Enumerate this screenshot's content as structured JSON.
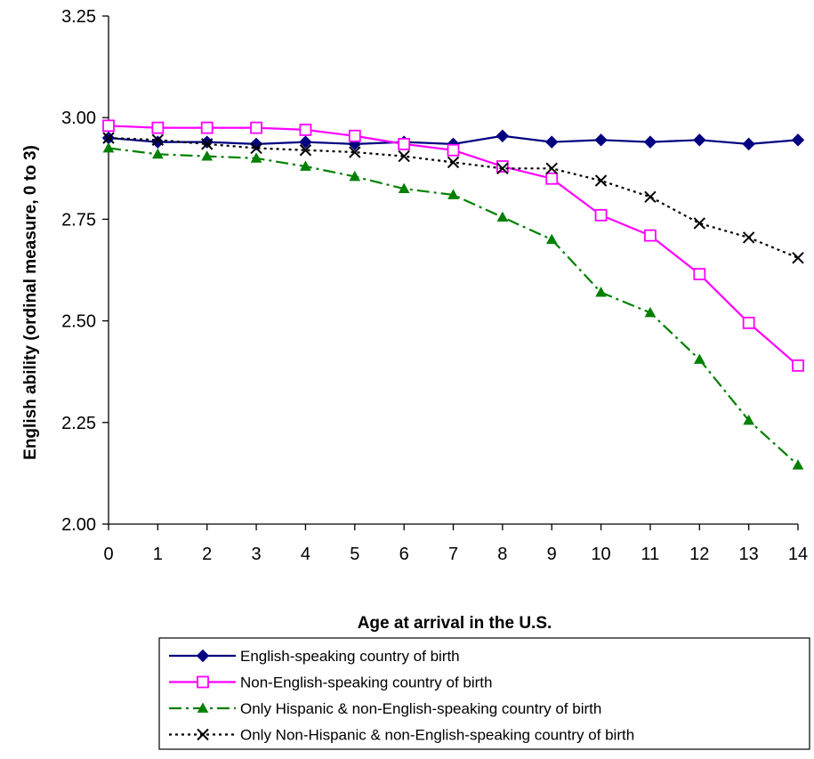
{
  "chart_data": {
    "type": "line",
    "title": "",
    "xlabel": "Age at arrival in the U.S.",
    "ylabel": "English ability (ordinal measure, 0 to 3)",
    "x": [
      0,
      1,
      2,
      3,
      4,
      5,
      6,
      7,
      8,
      9,
      10,
      11,
      12,
      13,
      14
    ],
    "xlim": [
      0,
      14
    ],
    "ylim": [
      2.0,
      3.25
    ],
    "yticks": [
      2.0,
      2.25,
      2.5,
      2.75,
      3.0,
      3.25
    ],
    "yticks_labels": [
      "2.00",
      "2.25",
      "2.50",
      "2.75",
      "3.00",
      "3.25"
    ],
    "xticks_labels": [
      "0",
      "1",
      "2",
      "3",
      "4",
      "5",
      "6",
      "7",
      "8",
      "9",
      "10",
      "11",
      "12",
      "13",
      "14"
    ],
    "grid": false,
    "legend_position": "bottom",
    "series": [
      {
        "name": "English-speaking country of birth",
        "color": "#000080",
        "line_style": "solid",
        "marker": "filled-diamond",
        "values": [
          2.95,
          2.94,
          2.94,
          2.935,
          2.94,
          2.935,
          2.94,
          2.935,
          2.955,
          2.94,
          2.945,
          2.94,
          2.945,
          2.935,
          2.945
        ]
      },
      {
        "name": "Non-English-speaking country of birth",
        "color": "#ff00ff",
        "line_style": "solid",
        "marker": "open-square",
        "values": [
          2.98,
          2.975,
          2.975,
          2.975,
          2.97,
          2.955,
          2.935,
          2.92,
          2.88,
          2.85,
          2.76,
          2.71,
          2.615,
          2.495,
          2.39
        ]
      },
      {
        "name": "Only Hispanic & non-English-speaking country of birth",
        "color": "#008000",
        "line_style": "dash-dot",
        "marker": "filled-triangle",
        "values": [
          2.925,
          2.91,
          2.905,
          2.9,
          2.88,
          2.855,
          2.825,
          2.81,
          2.755,
          2.7,
          2.57,
          2.52,
          2.405,
          2.255,
          2.145
        ]
      },
      {
        "name": "Only Non-Hispanic & non-English-speaking country of birth",
        "color": "#000000",
        "line_style": "dotted",
        "marker": "x",
        "values": [
          2.95,
          2.945,
          2.935,
          2.925,
          2.92,
          2.915,
          2.905,
          2.89,
          2.875,
          2.875,
          2.845,
          2.805,
          2.74,
          2.705,
          2.655
        ]
      }
    ]
  }
}
